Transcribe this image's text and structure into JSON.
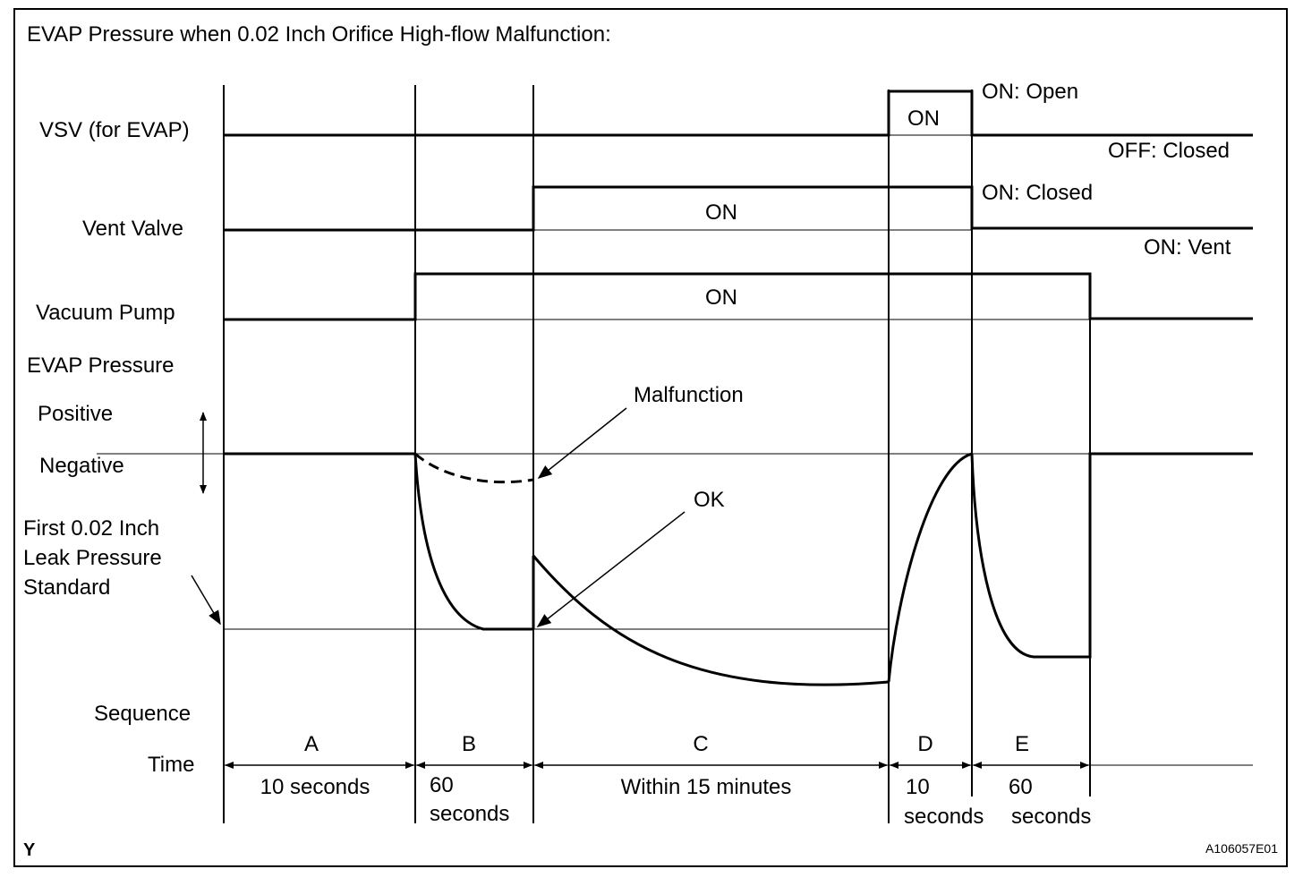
{
  "title": "EVAP Pressure when 0.02 Inch Orifice High-flow Malfunction:",
  "signals": {
    "vsv": "VSV (for EVAP)",
    "vent": "Vent Valve",
    "pump": "Vacuum Pump",
    "evap": "EVAP Pressure"
  },
  "pressure_axis": {
    "positive": "Positive",
    "negative": "Negative",
    "standard_line1": "First 0.02 Inch",
    "standard_line2": "Leak Pressure",
    "standard_line3": "Standard"
  },
  "states": {
    "vsv_on": "ON",
    "vsv_on_note": "ON: Open",
    "vsv_off_note": "OFF: Closed",
    "vent_on": "ON",
    "vent_on_note": "ON: Closed",
    "vent_off_note": "ON: Vent",
    "pump_on": "ON"
  },
  "annotations": {
    "malfunction": "Malfunction",
    "ok": "OK"
  },
  "rows": {
    "sequence": "Sequence",
    "time": "Time"
  },
  "sequence": [
    {
      "label": "A",
      "duration": "10 seconds"
    },
    {
      "label": "B",
      "duration_line1": "60",
      "duration_line2": "seconds"
    },
    {
      "label": "C",
      "duration": "Within 15 minutes"
    },
    {
      "label": "D",
      "duration_line1": "10",
      "duration_line2": "seconds"
    },
    {
      "label": "E",
      "duration_line1": "60",
      "duration_line2": "seconds"
    }
  ],
  "footer": {
    "left_mark": "Y",
    "figure_code": "A106057E01"
  }
}
